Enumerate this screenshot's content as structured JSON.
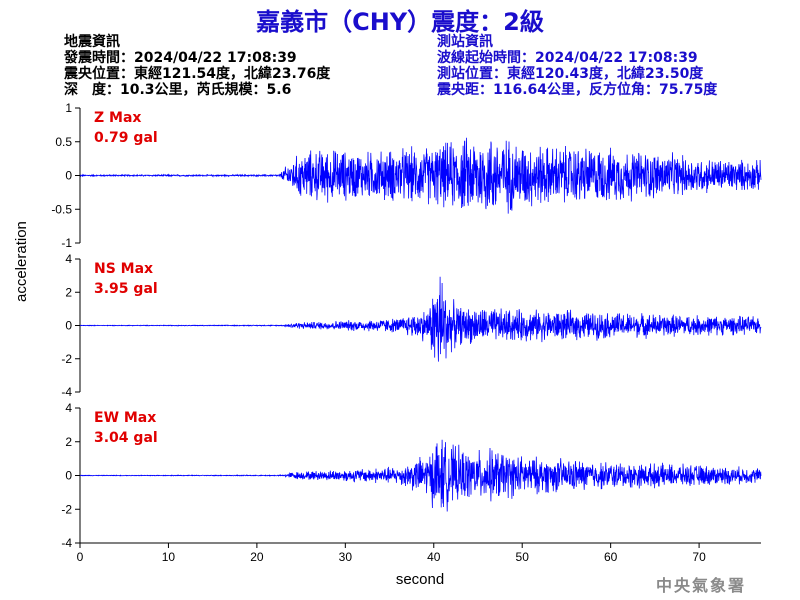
{
  "title": "嘉義市（CHY）震度：2級",
  "earthquake_info": {
    "heading": "地震資訊",
    "origin_time": "發震時間：2024/04/22 17:08:39",
    "epicenter": "震央位置：東經121.54度，北緯23.76度",
    "depth_magnitude": "深　度：10.3公里，芮氏規模：5.6"
  },
  "station_info": {
    "heading": "測站資訊",
    "wave_start": "波線起始時間：2024/04/22 17:08:39",
    "location": "測站位置：東經120.43度，北緯23.50度",
    "distance": "震央距：116.64公里，反方位角：75.75度"
  },
  "footer": "中央氣象署",
  "colors": {
    "title": "#1a0dcc",
    "trace": "#0000ff",
    "max_label": "#e00000",
    "station_info": "#1a0dcc"
  },
  "chart_data": [
    {
      "type": "line",
      "component": "Z",
      "max_label": "Z Max",
      "max_value": "0.79 gal",
      "xlim": [
        0,
        77
      ],
      "ylim": [
        -1,
        1
      ],
      "yticks": [
        "1",
        "0.5",
        "0",
        "-0.5",
        "-1"
      ],
      "yticks_values": [
        1,
        0.5,
        0,
        -0.5,
        -1
      ],
      "envelope": {
        "t": [
          0,
          22.5,
          23.5,
          25,
          28,
          32,
          36,
          40,
          44,
          46,
          48,
          50,
          53,
          56,
          60,
          65,
          70,
          77
        ],
        "amp": [
          0.012,
          0.014,
          0.2,
          0.4,
          0.45,
          0.4,
          0.45,
          0.5,
          0.65,
          0.7,
          0.65,
          0.55,
          0.5,
          0.5,
          0.45,
          0.4,
          0.3,
          0.25
        ]
      }
    },
    {
      "type": "line",
      "component": "NS",
      "max_label": "NS Max",
      "max_value": "3.95 gal",
      "xlim": [
        0,
        77
      ],
      "ylim": [
        -4,
        4
      ],
      "yticks": [
        "4",
        "2",
        "0",
        "-2",
        "-4"
      ],
      "yticks_values": [
        4,
        2,
        0,
        -2,
        -4
      ],
      "envelope": {
        "t": [
          0,
          23,
          24,
          30,
          36,
          39.5,
          40.3,
          40.8,
          41.8,
          43,
          46,
          50,
          55,
          60,
          70,
          77
        ],
        "amp": [
          0.02,
          0.03,
          0.2,
          0.35,
          0.5,
          1.2,
          3.8,
          3.9,
          1.8,
          1.3,
          1.2,
          1.1,
          1.0,
          0.9,
          0.7,
          0.6
        ]
      }
    },
    {
      "type": "line",
      "component": "EW",
      "max_label": "EW Max",
      "max_value": "3.04 gal",
      "xlim": [
        0,
        77
      ],
      "ylim": [
        -4,
        4
      ],
      "yticks": [
        "4",
        "2",
        "0",
        "-2",
        "-4"
      ],
      "yticks_values": [
        4,
        2,
        0,
        -2,
        -4
      ],
      "envelope": {
        "t": [
          0,
          23,
          24,
          30,
          36,
          39.5,
          40.5,
          41.5,
          44,
          47,
          50,
          55,
          60,
          70,
          77
        ],
        "amp": [
          0.02,
          0.03,
          0.25,
          0.4,
          0.6,
          1.5,
          2.9,
          2.2,
          1.6,
          1.8,
          1.3,
          1.1,
          0.9,
          0.7,
          0.5
        ]
      }
    }
  ],
  "x_axis": {
    "label": "second",
    "ticks": [
      "0",
      "10",
      "20",
      "30",
      "40",
      "50",
      "60",
      "70"
    ],
    "tick_values": [
      0,
      10,
      20,
      30,
      40,
      50,
      60,
      70
    ]
  },
  "y_axis": {
    "label": "acceleration"
  }
}
